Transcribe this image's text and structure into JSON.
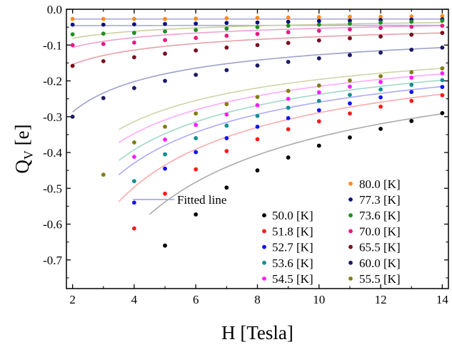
{
  "chart_data": {
    "type": "scatter",
    "xlabel": "H [Tesla]",
    "ylabel_main": "Q",
    "ylabel_sub": "V",
    "ylabel_unit": " [e]",
    "xlim": [
      1.8,
      14.2
    ],
    "ylim": [
      -0.78,
      0.0
    ],
    "xticks": [
      2,
      4,
      6,
      8,
      10,
      12,
      14
    ],
    "xtick_labels": [
      "2",
      "4",
      "6",
      "8",
      "10",
      "12",
      "14"
    ],
    "yticks": [
      0.0,
      -0.1,
      -0.2,
      -0.3,
      -0.4,
      -0.5,
      -0.6,
      -0.7
    ],
    "ytick_labels": [
      "0.0",
      "-0.1",
      "-0.2",
      "-0.3",
      "-0.4",
      "-0.5",
      "-0.6",
      "-0.7"
    ],
    "grid": false,
    "legend_position": "bottom-right",
    "fitted_line_label": "Fitted line",
    "fitted_line_color": "#a9a9d8",
    "series": [
      {
        "name": "80.0 [K]",
        "color": "#ff8c1a",
        "fit_color": "#a9a9d8",
        "x": [
          2,
          3,
          4,
          5,
          6,
          7,
          8,
          9,
          10,
          11,
          12,
          13,
          14
        ],
        "y": [
          -0.027,
          -0.027,
          -0.027,
          -0.027,
          -0.026,
          -0.025,
          -0.024,
          -0.023,
          -0.022,
          -0.021,
          -0.021,
          -0.02,
          -0.019
        ]
      },
      {
        "name": "77.3 [K]",
        "color": "#0d0d80",
        "fit_color": "#a9a9d8",
        "x": [
          2,
          3,
          4,
          5,
          6,
          7,
          8,
          9,
          10,
          11,
          12,
          13,
          14
        ],
        "y": [
          -0.043,
          -0.043,
          -0.042,
          -0.041,
          -0.04,
          -0.038,
          -0.037,
          -0.035,
          -0.033,
          -0.032,
          -0.03,
          -0.029,
          -0.028
        ]
      },
      {
        "name": "73.6 [K]",
        "color": "#1e8f1e",
        "fit_color": "#c8cf9c",
        "x": [
          2,
          3,
          4,
          5,
          6,
          7,
          8,
          9,
          10,
          11,
          12,
          13,
          14
        ],
        "y": [
          -0.07,
          -0.068,
          -0.066,
          -0.062,
          -0.058,
          -0.054,
          -0.05,
          -0.046,
          -0.043,
          -0.04,
          -0.037,
          -0.035,
          -0.032
        ]
      },
      {
        "name": "70.0 [K]",
        "color": "#e8197f",
        "fit_color": "#f0a0d0",
        "x": [
          2,
          3,
          4,
          5,
          6,
          7,
          8,
          9,
          10,
          11,
          12,
          13,
          14
        ],
        "y": [
          -0.1,
          -0.097,
          -0.093,
          -0.086,
          -0.08,
          -0.074,
          -0.069,
          -0.064,
          -0.06,
          -0.056,
          -0.052,
          -0.049,
          -0.046
        ]
      },
      {
        "name": "65.5 [K]",
        "color": "#7a0d1e",
        "fit_color": "#e6a0a8",
        "x": [
          2,
          3,
          4,
          5,
          6,
          7,
          8,
          9,
          10,
          11,
          12,
          13,
          14
        ],
        "y": [
          -0.158,
          -0.145,
          -0.134,
          -0.124,
          -0.115,
          -0.107,
          -0.1,
          -0.094,
          -0.087,
          -0.081,
          -0.076,
          -0.071,
          -0.066
        ]
      },
      {
        "name": "60.0 [K]",
        "color": "#1a1a66",
        "fit_color": "#9ea0cc",
        "x": [
          2,
          3,
          4,
          5,
          6,
          7,
          8,
          9,
          10,
          11,
          12,
          13,
          14
        ],
        "y": [
          -0.3,
          -0.248,
          -0.22,
          -0.2,
          -0.183,
          -0.17,
          -0.157,
          -0.147,
          -0.137,
          -0.128,
          -0.121,
          -0.113,
          -0.107
        ]
      },
      {
        "name": "55.5 [K]",
        "color": "#7f7f12",
        "fit_color": "#d0d4a8",
        "x": [
          3,
          4,
          5,
          6,
          7,
          8,
          9,
          10,
          11,
          12,
          13,
          14
        ],
        "y": [
          -0.462,
          -0.372,
          -0.328,
          -0.291,
          -0.265,
          -0.245,
          -0.228,
          -0.213,
          -0.199,
          -0.187,
          -0.176,
          -0.165
        ]
      },
      {
        "name": "54.5 [K]",
        "color": "#ff1aff",
        "fit_color": "#ffaaff",
        "x": [
          4,
          5,
          6,
          7,
          8,
          9,
          10,
          11,
          12,
          13,
          14
        ],
        "y": [
          -0.412,
          -0.364,
          -0.323,
          -0.294,
          -0.268,
          -0.25,
          -0.232,
          -0.216,
          -0.203,
          -0.191,
          -0.179
        ]
      },
      {
        "name": "53.6 [K]",
        "color": "#0f8f8f",
        "fit_color": "#a0d8c8",
        "x": [
          4,
          5,
          6,
          7,
          8,
          9,
          10,
          11,
          12,
          13,
          14
        ],
        "y": [
          -0.48,
          -0.405,
          -0.36,
          -0.325,
          -0.298,
          -0.275,
          -0.256,
          -0.239,
          -0.224,
          -0.211,
          -0.198
        ]
      },
      {
        "name": "52.7 [K]",
        "color": "#1010ff",
        "fit_color": "#aaaaff",
        "x": [
          4,
          5,
          6,
          7,
          8,
          9,
          10,
          11,
          12,
          13,
          14
        ],
        "y": [
          -0.54,
          -0.445,
          -0.399,
          -0.36,
          -0.328,
          -0.304,
          -0.282,
          -0.263,
          -0.246,
          -0.231,
          -0.217
        ]
      },
      {
        "name": "51.8 [K]",
        "color": "#ff1a1a",
        "fit_color": "#ffaaaa",
        "x": [
          4,
          5,
          6,
          7,
          8,
          9,
          10,
          11,
          12,
          13,
          14
        ],
        "y": [
          -0.612,
          -0.515,
          -0.447,
          -0.396,
          -0.363,
          -0.335,
          -0.313,
          -0.291,
          -0.272,
          -0.256,
          -0.24
        ]
      },
      {
        "name": "50.0 [K]",
        "color": "#000000",
        "fit_color": "#aaaaaa",
        "x": [
          5,
          6,
          7,
          8,
          9,
          10,
          11,
          12,
          13,
          14
        ],
        "y": [
          -0.66,
          -0.573,
          -0.498,
          -0.45,
          -0.414,
          -0.381,
          -0.358,
          -0.334,
          -0.312,
          -0.29
        ]
      }
    ],
    "fits": [
      {
        "series": "80.0 [K]",
        "x_start": 2.0,
        "a": -0.0272,
        "b": 0.0
      },
      {
        "series": "77.3 [K]",
        "x_start": 2.0,
        "a": -0.046,
        "b": 0.01
      },
      {
        "series": "73.6 [K]",
        "x_start": 2.0,
        "a": -0.1072,
        "b": 0.402
      },
      {
        "series": "70.0 [K]",
        "x_start": 2.0,
        "a": -0.144,
        "b": 0.432
      },
      {
        "series": "65.5 [K]",
        "x_start": 2.0,
        "a": -0.208,
        "b": 0.434
      },
      {
        "series": "60.0 [K]",
        "x_start": 2.0,
        "a": -0.408,
        "b": 0.507
      },
      {
        "series": "55.5 [K]",
        "x_start": 3.5,
        "a": -0.64,
        "b": 0.514
      },
      {
        "series": "54.5 [K]",
        "x_start": 3.5,
        "a": -0.716,
        "b": 0.522
      },
      {
        "series": "53.6 [K]",
        "x_start": 3.5,
        "a": -0.838,
        "b": 0.547
      },
      {
        "series": "52.7 [K]",
        "x_start": 3.5,
        "a": -0.921,
        "b": 0.55
      },
      {
        "series": "51.8 [K]",
        "x_start": 3.5,
        "a": -1.127,
        "b": 0.591
      },
      {
        "series": "50.0 [K]",
        "x_start": 4.5,
        "a": -1.4,
        "b": 0.594
      }
    ],
    "legend_columns": [
      [
        "Fitted line",
        "50.0 [K]",
        "51.8 [K]",
        "52.7 [K]",
        "53.6 [K]",
        "54.5 [K]"
      ],
      [
        "80.0 [K]",
        "77.3 [K]",
        "73.6 [K]",
        "70.0 [K]",
        "65.5 [K]",
        "60.0 [K]",
        "55.5 [K]"
      ]
    ]
  }
}
